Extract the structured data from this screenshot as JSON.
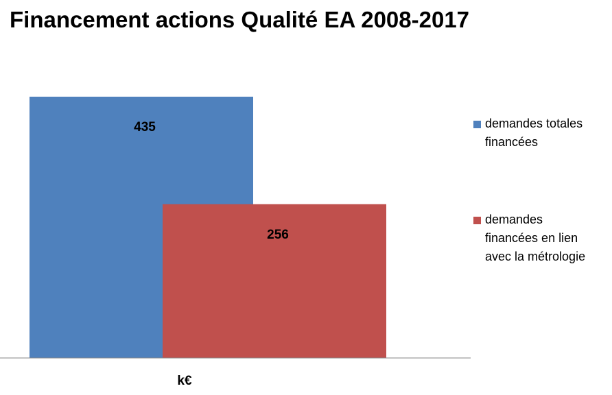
{
  "chart_data": {
    "type": "bar",
    "title": "Financement actions Qualité EA 2008-2017",
    "categories": [
      "k€"
    ],
    "series": [
      {
        "name": "demandes totales financées",
        "legend_lines": [
          "demandes totales",
          "financées"
        ],
        "values": [
          435
        ],
        "color": "#4F81BD"
      },
      {
        "name": "demandes financées en lien avec la métrologie",
        "legend_lines": [
          "demandes",
          "financées en lien",
          "avec la métrologie"
        ],
        "values": [
          256
        ],
        "color": "#C0504D"
      }
    ],
    "data_labels": [
      "435",
      "256"
    ],
    "xlabel": "k€",
    "ylabel": "",
    "ylim": [
      0,
      435
    ],
    "grid": false,
    "legend_position": "right",
    "overlap": true
  }
}
